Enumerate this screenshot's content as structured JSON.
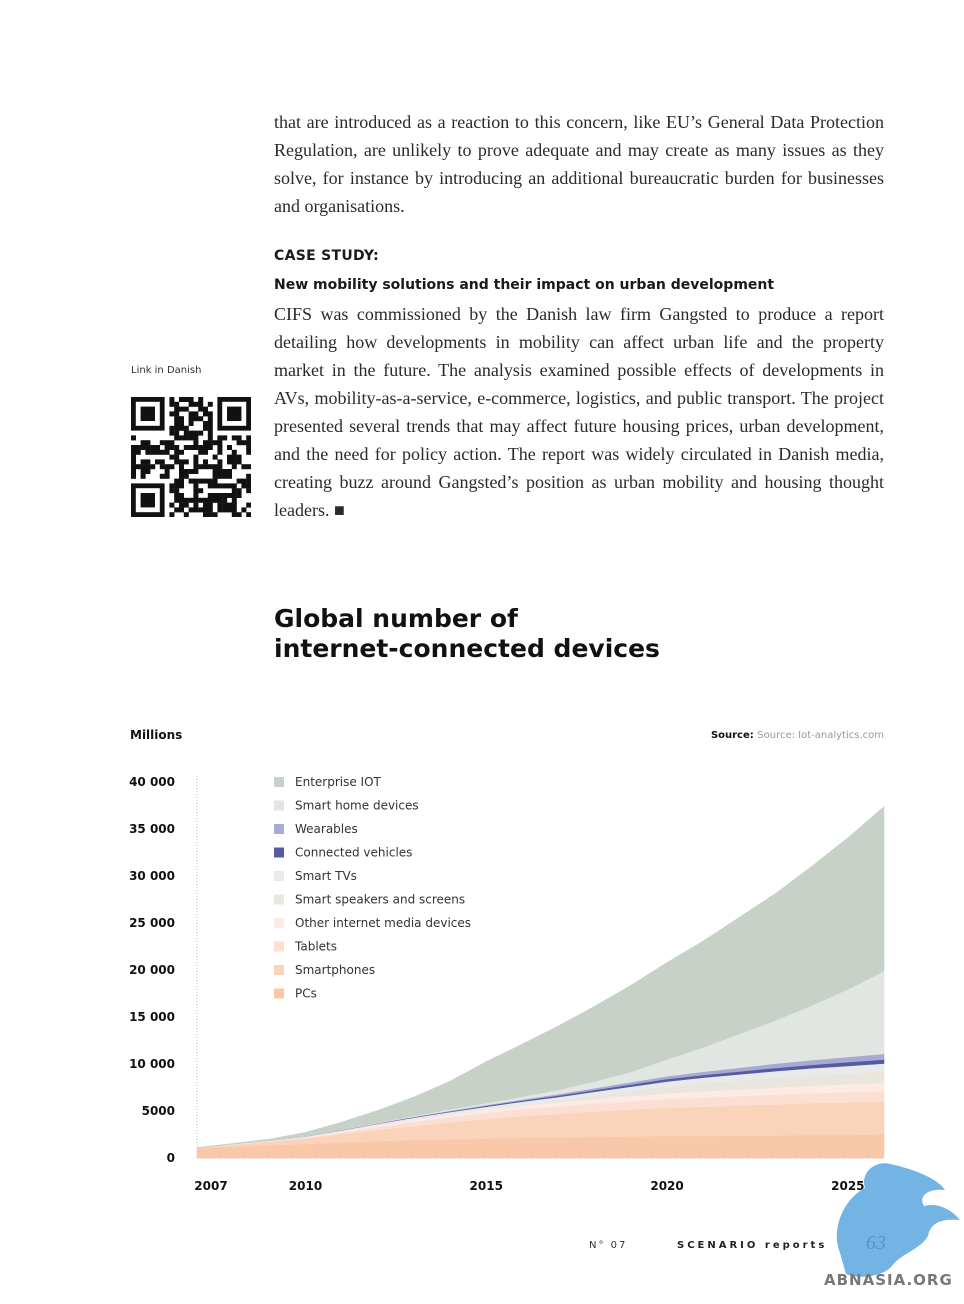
{
  "article": {
    "para_top": "that are introduced as a reaction to this concern, like EU’s General Data Protection Regulation, are unlikely to prove adequate and may create as many issues as they solve, for instance by introducing an additional bureaucratic burden for businesses and organisations.",
    "case_label": "CASE STUDY:",
    "case_title": "New mobility solutions and their impact on urban development",
    "case_body": "CIFS was commissioned by the Danish law firm Gangsted to produce a report detailing how developments in mobility can affect urban life and the property market in the future. The analysis examined possible effects of developments in AVs, mobility-as-a-service, e-commerce, logistics, and public transport. The project presented several trends that may affect future housing prices, urban development, and the need for policy action. The report was widely circulated in Danish media, creating buzz around Gangsted’s position as urban mobility and housing thought leaders. ■",
    "qr_label": "Link in Danish"
  },
  "chart_title_lines": [
    "Global number of",
    "internet-connected devices"
  ],
  "chart_data": {
    "type": "area",
    "ylabel": "Millions",
    "source_label": "Source:",
    "source_text": "Source: Iot-analytics.com",
    "ylim": [
      0,
      40000
    ],
    "yticks": [
      0,
      5000,
      10000,
      15000,
      20000,
      25000,
      30000,
      35000,
      40000
    ],
    "ytick_labels": [
      "0",
      "5000",
      "10 000",
      "15 000",
      "20 000",
      "25 000",
      "30 000",
      "35 000",
      "40 000"
    ],
    "xlim": [
      2007,
      2026
    ],
    "xticks": [
      2007,
      2010,
      2015,
      2020,
      2025
    ],
    "stacked": true,
    "legend_placement": "top-left",
    "x": [
      2007,
      2008,
      2009,
      2010,
      2011,
      2012,
      2013,
      2014,
      2015,
      2016,
      2017,
      2018,
      2019,
      2020,
      2021,
      2022,
      2023,
      2024,
      2025,
      2026
    ],
    "series": [
      {
        "name": "PCs",
        "color": "#f9c8a8",
        "values": [
          1000,
          1200,
          1350,
          1500,
          1650,
          1800,
          1900,
          2000,
          2050,
          2150,
          2200,
          2250,
          2300,
          2350,
          2350,
          2400,
          2400,
          2450,
          2450,
          2500
        ]
      },
      {
        "name": "Smartphones",
        "color": "#fad3bb",
        "values": [
          100,
          250,
          400,
          600,
          900,
          1200,
          1500,
          1800,
          2100,
          2300,
          2500,
          2700,
          2850,
          3000,
          3100,
          3200,
          3300,
          3400,
          3450,
          3500
        ]
      },
      {
        "name": "Tablets",
        "color": "#fbdfd3",
        "values": [
          0,
          0,
          10,
          50,
          150,
          300,
          450,
          550,
          650,
          750,
          800,
          850,
          900,
          950,
          1000,
          1000,
          1050,
          1050,
          1100,
          1100
        ]
      },
      {
        "name": "Other internet media devices",
        "color": "#fdeae5",
        "values": [
          0,
          50,
          80,
          100,
          150,
          200,
          250,
          300,
          350,
          400,
          450,
          500,
          550,
          600,
          650,
          700,
          750,
          800,
          850,
          900
        ]
      },
      {
        "name": "Smart speakers and screens",
        "color": "#e9e6dd",
        "values": [
          0,
          0,
          0,
          0,
          0,
          0,
          0,
          0,
          10,
          50,
          150,
          300,
          500,
          700,
          850,
          950,
          1050,
          1100,
          1150,
          1200
        ]
      },
      {
        "name": "Smart TVs",
        "color": "#e8eaec",
        "values": [
          0,
          0,
          10,
          50,
          100,
          150,
          200,
          250,
          300,
          350,
          400,
          450,
          500,
          550,
          600,
          650,
          700,
          750,
          800,
          850
        ]
      },
      {
        "name": "Connected vehicles",
        "color": "#565aa0",
        "values": [
          0,
          0,
          0,
          10,
          20,
          30,
          50,
          70,
          100,
          130,
          160,
          190,
          220,
          250,
          280,
          310,
          340,
          370,
          400,
          430
        ]
      },
      {
        "name": "Wearables",
        "color": "#a9aad3",
        "values": [
          0,
          0,
          0,
          0,
          10,
          20,
          40,
          60,
          80,
          100,
          150,
          200,
          250,
          300,
          350,
          400,
          450,
          500,
          550,
          600
        ]
      },
      {
        "name": "Smart home devices",
        "color": "#e2e6e2",
        "values": [
          0,
          0,
          0,
          10,
          30,
          60,
          100,
          150,
          200,
          300,
          450,
          700,
          1100,
          1800,
          2600,
          3600,
          4600,
          5800,
          7200,
          8800
        ]
      },
      {
        "name": "Enterprise IOT",
        "color": "#c8d1c7",
        "values": [
          0,
          50,
          150,
          400,
          800,
          1300,
          2000,
          3000,
          4400,
          5600,
          6800,
          8000,
          9200,
          10300,
          11300,
          12400,
          13500,
          14800,
          16100,
          17500
        ]
      }
    ]
  },
  "footer": {
    "issue": "N° 07",
    "brand": "SCENARIO reports",
    "page_number": "63"
  },
  "watermark": {
    "text": "ABNASIA.ORG",
    "color": "#5aa7e0"
  }
}
